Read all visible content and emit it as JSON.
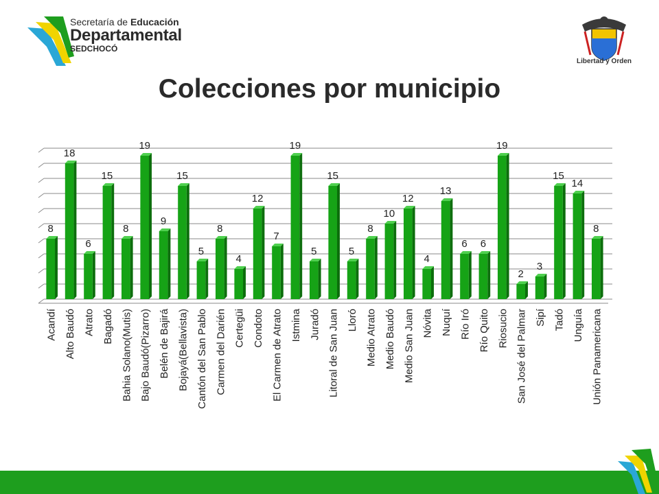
{
  "header": {
    "logo_line1_a": "Secretaría de ",
    "logo_line1_b": "Educación",
    "logo_line2": "Departamental",
    "logo_line3": "SEDCHOCÓ",
    "emblem_caption": "Libertad y Orden"
  },
  "colors": {
    "bar": "#16a316",
    "bar_dark": "#0d6e0d",
    "bar_light": "#4fd04f",
    "footer": "#1e9e1e",
    "grid": "#8a8a8a"
  },
  "chart_data": {
    "type": "bar",
    "title": "Colecciones por municipio",
    "xlabel": "",
    "ylabel": "",
    "ylim": [
      0,
      20
    ],
    "grid": true,
    "categories": [
      "Acandí",
      "Alto Baudó",
      "Atrato",
      "Bagadó",
      "Bahia Solano(Mutis)",
      "Bajo Baudó(Pizarro)",
      "Belén de Bajirá",
      "Bojayá(Bellavista)",
      "Cantón del San Pablo",
      "Carmen del Darién",
      "Certegüi",
      "Condoto",
      "El Carmen de Atrato",
      "Istmina",
      "Juradó",
      "Litoral de San Juan",
      "Lloró",
      "Medio Atrato",
      "Medio Baudó",
      "Medio San Juan",
      "Nóvita",
      "Nuquí",
      "Río Iró",
      "Río Quito",
      "Riosucio",
      "San José del Palmar",
      "Sipí",
      "Tadó",
      "Unguía",
      "Unión Panamericana"
    ],
    "values": [
      8,
      18,
      6,
      15,
      8,
      19,
      9,
      15,
      5,
      8,
      4,
      12,
      7,
      19,
      5,
      15,
      5,
      8,
      10,
      12,
      4,
      13,
      6,
      6,
      19,
      2,
      3,
      15,
      14,
      8
    ]
  }
}
